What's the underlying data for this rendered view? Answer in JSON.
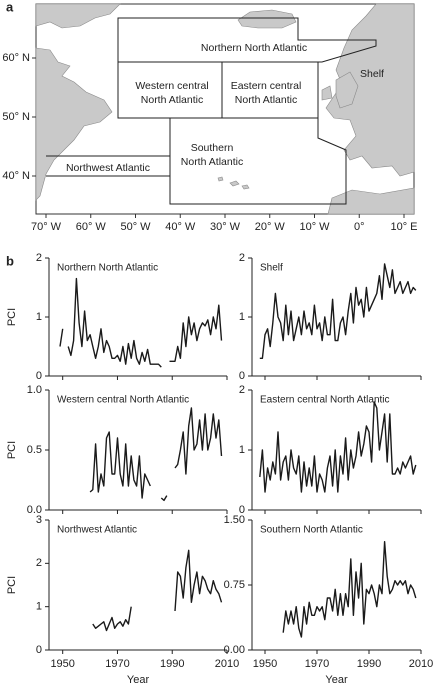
{
  "panel_labels": [
    "a",
    "b"
  ],
  "map": {
    "lat_labels": [
      "60° N",
      "50° N",
      "40° N"
    ],
    "lon_labels": [
      "70° W",
      "60° W",
      "50° W",
      "40° W",
      "30° W",
      "20° W",
      "10° W",
      "0°",
      "10° E"
    ],
    "regions": [
      {
        "name": [
          "Northern North Atlantic"
        ]
      },
      {
        "name": [
          "Western central",
          "North Atlantic"
        ]
      },
      {
        "name": [
          "Eastern central",
          "North Atlantic"
        ]
      },
      {
        "name": [
          "Shelf"
        ]
      },
      {
        "name": [
          "Southern",
          "North Atlantic"
        ]
      },
      {
        "name": [
          "Northwest Atlantic"
        ]
      }
    ]
  },
  "chart_data": [
    {
      "type": "line",
      "title": "Northern North Atlantic",
      "y_label": "PCI",
      "color": "#1a1a1a",
      "xlim": [
        1945,
        2010
      ],
      "xticks": [
        1950,
        1970,
        1990,
        2010
      ],
      "ylim": [
        0,
        2
      ],
      "yticks": [
        0,
        1,
        2
      ],
      "x": [
        1949,
        1950,
        1951,
        1952,
        1953,
        1954,
        1955,
        1956,
        1957,
        1958,
        1959,
        1960,
        1961,
        1962,
        1963,
        1964,
        1965,
        1966,
        1967,
        1968,
        1969,
        1970,
        1971,
        1972,
        1973,
        1974,
        1975,
        1976,
        1977,
        1978,
        1979,
        1980,
        1981,
        1982,
        1983,
        1984,
        1985,
        1986,
        1987,
        1988,
        1989,
        1990,
        1991,
        1992,
        1993,
        1994,
        1995,
        1996,
        1997,
        1998,
        1999,
        2000,
        2001,
        2002,
        2003,
        2004,
        2005,
        2006,
        2007,
        2008
      ],
      "values": [
        0.5,
        0.8,
        null,
        0.5,
        0.35,
        0.6,
        1.65,
        0.9,
        0.5,
        1.1,
        0.6,
        0.7,
        0.5,
        0.3,
        0.5,
        0.8,
        0.4,
        0.6,
        0.5,
        0.3,
        0.3,
        0.35,
        0.25,
        0.5,
        0.2,
        0.55,
        0.3,
        0.6,
        0.3,
        0.2,
        0.4,
        0.25,
        0.45,
        0.2,
        0.2,
        0.2,
        0.2,
        0.15,
        null,
        null,
        0.25,
        0.25,
        0.25,
        0.5,
        0.3,
        0.9,
        0.5,
        1.0,
        0.7,
        0.9,
        0.6,
        0.8,
        0.9,
        0.85,
        0.95,
        0.7,
        1.0,
        0.8,
        1.2,
        0.6
      ]
    },
    {
      "type": "line",
      "title": "Shelf",
      "color": "#1a1a1a",
      "xlim": [
        1945,
        2010
      ],
      "xticks": [
        1950,
        1970,
        1990,
        2010
      ],
      "ylim": [
        0,
        2
      ],
      "yticks": [
        0,
        1,
        2
      ],
      "x": [
        1948,
        1949,
        1950,
        1951,
        1952,
        1953,
        1954,
        1955,
        1956,
        1957,
        1958,
        1959,
        1960,
        1961,
        1962,
        1963,
        1964,
        1965,
        1966,
        1967,
        1968,
        1969,
        1970,
        1971,
        1972,
        1973,
        1974,
        1975,
        1976,
        1977,
        1978,
        1979,
        1980,
        1981,
        1982,
        1983,
        1984,
        1985,
        1986,
        1987,
        1988,
        1989,
        1990,
        1991,
        1992,
        1993,
        1994,
        1995,
        1996,
        1997,
        1998,
        1999,
        2000,
        2001,
        2002,
        2003,
        2004,
        2005,
        2006,
        2007,
        2008
      ],
      "values": [
        0.3,
        0.3,
        0.7,
        0.8,
        0.5,
        0.9,
        1.4,
        1.0,
        0.9,
        0.6,
        1.2,
        0.7,
        1.1,
        0.6,
        0.8,
        1.0,
        0.7,
        1.1,
        0.8,
        0.9,
        0.7,
        1.2,
        0.8,
        0.9,
        0.6,
        1.0,
        0.7,
        0.7,
        1.3,
        0.6,
        0.6,
        0.9,
        1.0,
        0.7,
        1.1,
        1.4,
        0.9,
        1.5,
        1.2,
        1.3,
        1.0,
        1.5,
        1.1,
        1.2,
        1.3,
        1.4,
        1.7,
        1.3,
        1.9,
        1.7,
        1.5,
        1.8,
        1.4,
        1.5,
        1.6,
        1.4,
        1.5,
        1.6,
        1.4,
        1.5,
        1.45
      ]
    },
    {
      "type": "line",
      "title": "Western central North Atlantic",
      "y_label": "PCI",
      "color": "#1a1a1a",
      "xlim": [
        1945,
        2010
      ],
      "xticks": [
        1950,
        1970,
        1990,
        2010
      ],
      "ylim": [
        0,
        1
      ],
      "yticks": [
        {
          "value": 0,
          "label": "0.0"
        },
        0.5,
        {
          "value": 1,
          "label": "1.0"
        }
      ],
      "x": [
        1960,
        1961,
        1962,
        1963,
        1964,
        1965,
        1966,
        1967,
        1968,
        1969,
        1970,
        1971,
        1972,
        1973,
        1974,
        1975,
        1976,
        1977,
        1978,
        1979,
        1980,
        1981,
        1982,
        1983,
        1984,
        1985,
        1986,
        1987,
        1988,
        1989,
        1990,
        1991,
        1992,
        1993,
        1994,
        1995,
        1996,
        1997,
        1998,
        1999,
        2000,
        2001,
        2002,
        2003,
        2004,
        2005,
        2006,
        2007,
        2008
      ],
      "values": [
        0.15,
        0.17,
        0.55,
        0.15,
        0.3,
        0.2,
        0.6,
        0.65,
        0.3,
        0.3,
        0.6,
        0.3,
        0.2,
        0.55,
        0.2,
        0.45,
        0.25,
        0.2,
        0.45,
        0.1,
        0.3,
        0.25,
        0.2,
        null,
        null,
        null,
        0.1,
        0.08,
        0.12,
        null,
        null,
        0.35,
        0.38,
        0.5,
        0.65,
        0.3,
        0.7,
        0.85,
        0.5,
        0.55,
        0.75,
        0.5,
        0.8,
        0.5,
        0.6,
        0.8,
        0.6,
        0.75,
        0.45
      ]
    },
    {
      "type": "line",
      "title": "Eastern central North Atlantic",
      "color": "#1a1a1a",
      "xlim": [
        1945,
        2010
      ],
      "xticks": [
        1950,
        1970,
        1990,
        2010
      ],
      "ylim": [
        0,
        2
      ],
      "yticks": [
        0,
        1,
        2
      ],
      "x": [
        1948,
        1949,
        1950,
        1951,
        1952,
        1953,
        1954,
        1955,
        1956,
        1957,
        1958,
        1959,
        1960,
        1961,
        1962,
        1963,
        1964,
        1965,
        1966,
        1967,
        1968,
        1969,
        1970,
        1971,
        1972,
        1973,
        1974,
        1975,
        1976,
        1977,
        1978,
        1979,
        1980,
        1981,
        1982,
        1983,
        1984,
        1985,
        1986,
        1987,
        1988,
        1989,
        1990,
        1991,
        1992,
        1993,
        1994,
        1995,
        1996,
        1997,
        1998,
        1999,
        2000,
        2001,
        2002,
        2003,
        2004,
        2005,
        2006,
        2007,
        2008
      ],
      "values": [
        0.55,
        1.0,
        0.3,
        0.7,
        0.5,
        0.8,
        0.6,
        1.3,
        0.5,
        0.8,
        0.9,
        0.5,
        1.0,
        0.7,
        0.6,
        0.9,
        0.3,
        0.8,
        0.4,
        0.7,
        0.4,
        0.9,
        0.3,
        0.6,
        0.5,
        0.3,
        0.7,
        0.9,
        0.4,
        1.0,
        0.3,
        0.9,
        0.6,
        1.2,
        0.5,
        1.0,
        0.7,
        0.9,
        1.3,
        0.9,
        1.1,
        1.4,
        1.3,
        0.8,
        1.8,
        1.7,
        1.0,
        1.3,
        1.6,
        0.8,
        1.6,
        0.6,
        0.6,
        0.7,
        0.6,
        0.8,
        0.7,
        0.8,
        0.9,
        0.6,
        0.75
      ]
    },
    {
      "type": "line",
      "title": "Northwest Atlantic",
      "y_label": "PCI",
      "x_label": "Year",
      "color": "#1a1a1a",
      "xlim": [
        1945,
        2010
      ],
      "xticks": [
        1950,
        1970,
        1990,
        2010
      ],
      "ylim": [
        0,
        3
      ],
      "yticks": [
        0,
        1,
        2,
        3
      ],
      "x": [
        1961,
        1962,
        1963,
        1964,
        1965,
        1966,
        1967,
        1968,
        1969,
        1970,
        1971,
        1972,
        1973,
        1974,
        1975,
        1976,
        1977,
        1978,
        1979,
        1980,
        1981,
        1982,
        1983,
        1984,
        1985,
        1986,
        1987,
        1988,
        1989,
        1990,
        1991,
        1992,
        1993,
        1994,
        1995,
        1996,
        1997,
        1998,
        1999,
        2000,
        2001,
        2002,
        2003,
        2004,
        2005,
        2006,
        2007,
        2008
      ],
      "values": [
        0.6,
        0.5,
        0.55,
        0.6,
        0.65,
        0.45,
        0.6,
        0.75,
        0.5,
        0.6,
        0.65,
        0.55,
        0.7,
        0.6,
        1.0,
        null,
        null,
        null,
        null,
        null,
        null,
        null,
        null,
        null,
        null,
        null,
        null,
        null,
        null,
        null,
        0.9,
        1.8,
        1.7,
        1.2,
        1.9,
        2.3,
        1.1,
        1.5,
        1.8,
        1.3,
        1.7,
        1.6,
        1.4,
        1.3,
        1.6,
        1.4,
        1.3,
        1.1
      ]
    },
    {
      "type": "line",
      "title": "Southern North Atlantic",
      "x_label": "Year",
      "color": "#1a1a1a",
      "xlim": [
        1945,
        2010
      ],
      "xticks": [
        1950,
        1970,
        1990,
        2010
      ],
      "ylim": [
        0,
        1.5
      ],
      "yticks": [
        {
          "value": 0,
          "label": "0.00"
        },
        0.75,
        {
          "value": 1.5,
          "label": "1.50"
        }
      ],
      "x": [
        1957,
        1958,
        1959,
        1960,
        1961,
        1962,
        1963,
        1964,
        1965,
        1966,
        1967,
        1968,
        1969,
        1970,
        1971,
        1972,
        1973,
        1974,
        1975,
        1976,
        1977,
        1978,
        1979,
        1980,
        1981,
        1982,
        1983,
        1984,
        1985,
        1986,
        1987,
        1988,
        1989,
        1990,
        1991,
        1992,
        1993,
        1994,
        1995,
        1996,
        1997,
        1998,
        1999,
        2000,
        2001,
        2002,
        2003,
        2004,
        2005,
        2006,
        2007,
        2008
      ],
      "values": [
        0.2,
        0.45,
        0.3,
        0.45,
        0.3,
        0.5,
        0.25,
        0.15,
        0.5,
        0.3,
        0.55,
        0.4,
        0.4,
        0.5,
        0.45,
        0.5,
        0.35,
        0.6,
        0.6,
        0.45,
        0.7,
        0.4,
        0.65,
        0.4,
        0.65,
        0.5,
        1.05,
        0.4,
        0.9,
        0.6,
        1.0,
        0.3,
        0.7,
        0.65,
        0.75,
        0.65,
        0.5,
        0.75,
        0.65,
        1.25,
        0.85,
        0.65,
        0.7,
        0.8,
        0.75,
        0.8,
        0.75,
        0.8,
        0.65,
        0.75,
        0.7,
        0.6
      ]
    }
  ]
}
